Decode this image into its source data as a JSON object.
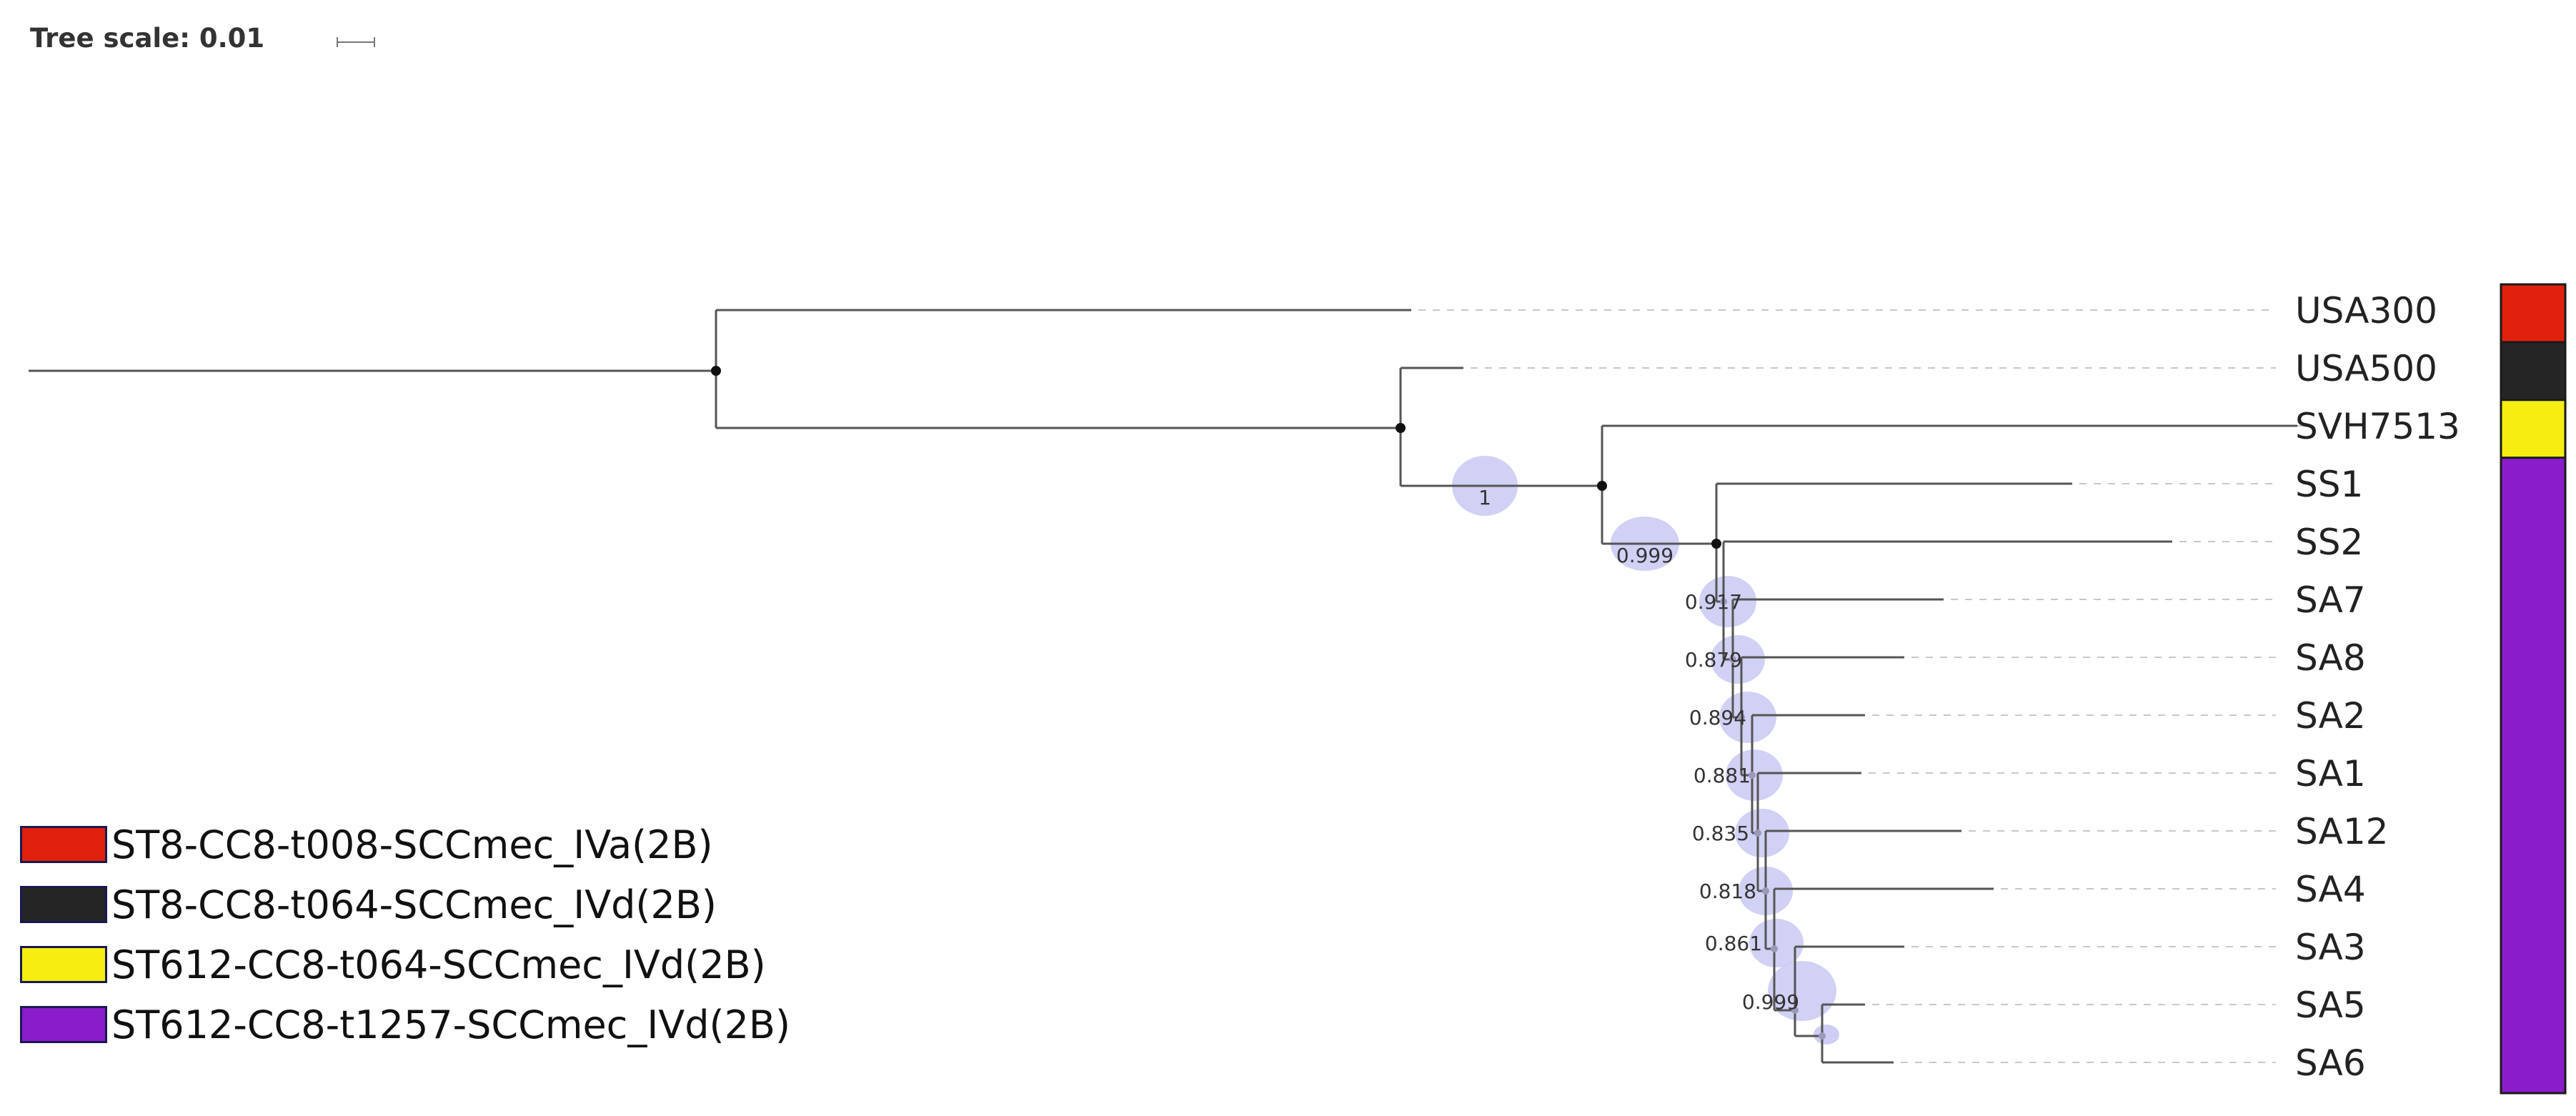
{
  "tree_scale": {
    "label": "Tree scale: 0.01"
  },
  "colors": {
    "branch": "#555555",
    "guide": "#c8c8c8",
    "node_dot": "#111111",
    "support_bubble": "#c9c9f3",
    "ST8_t008": "#e0200c",
    "ST8_t064": "#252525",
    "ST612_t064": "#f5ee10",
    "ST612_t1257": "#8a1ccc"
  },
  "legend": [
    {
      "label": "ST8-CC8-t008-SCCmec_IVa(2B)",
      "color": "#e0200c"
    },
    {
      "label": "ST8-CC8-t064-SCCmec_IVd(2B)",
      "color": "#252525"
    },
    {
      "label": "ST612-CC8-t064-SCCmec_IVd(2B)",
      "color": "#f5ee10"
    },
    {
      "label": "ST612-CC8-t1257-SCCmec_IVd(2B)",
      "color": "#8a1ccc"
    }
  ],
  "tree": {
    "leaves": [
      {
        "name": "USA300",
        "group": "ST8_t008"
      },
      {
        "name": "USA500",
        "group": "ST8_t064"
      },
      {
        "name": "SVH7513",
        "group": "ST612_t064"
      },
      {
        "name": "SS1",
        "group": "ST612_t1257"
      },
      {
        "name": "SS2",
        "group": "ST612_t1257"
      },
      {
        "name": "SA7",
        "group": "ST612_t1257"
      },
      {
        "name": "SA8",
        "group": "ST612_t1257"
      },
      {
        "name": "SA2",
        "group": "ST612_t1257"
      },
      {
        "name": "SA1",
        "group": "ST612_t1257"
      },
      {
        "name": "SA12",
        "group": "ST612_t1257"
      },
      {
        "name": "SA4",
        "group": "ST612_t1257"
      },
      {
        "name": "SA3",
        "group": "ST612_t1257"
      },
      {
        "name": "SA5",
        "group": "ST612_t1257"
      },
      {
        "name": "SA6",
        "group": "ST612_t1257"
      }
    ],
    "support_values": [
      {
        "value": "1",
        "node": "n3"
      },
      {
        "value": "0.999",
        "node": "n4"
      },
      {
        "value": "0.917",
        "node": "n5"
      },
      {
        "value": "0.879",
        "node": "n6"
      },
      {
        "value": "0.894",
        "node": "n7"
      },
      {
        "value": "0.881",
        "node": "n8"
      },
      {
        "value": "0.835",
        "node": "n9"
      },
      {
        "value": "0.818",
        "node": "n10"
      },
      {
        "value": "0.861",
        "node": "n11"
      },
      {
        "value": "0.999",
        "node": "n12"
      }
    ]
  }
}
